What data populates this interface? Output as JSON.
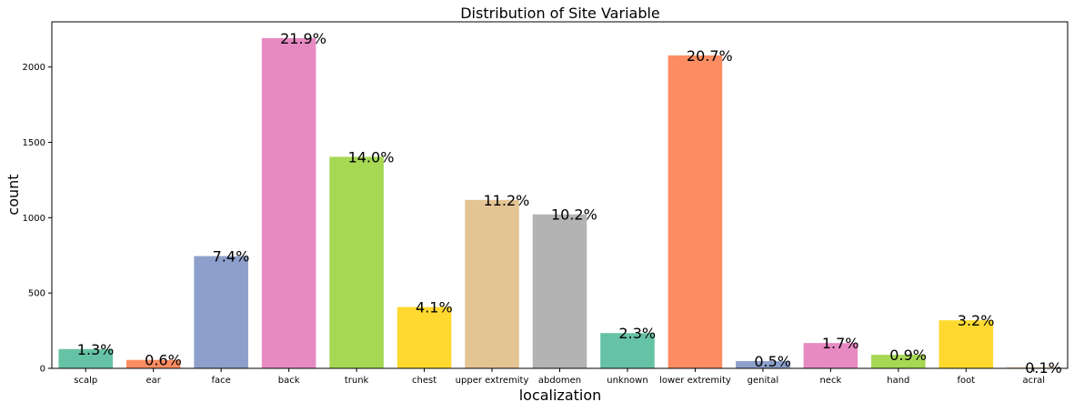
{
  "chart_data": {
    "type": "bar",
    "title": "Distribution of Site Variable",
    "xlabel": "localization",
    "ylabel": "count",
    "ylim": [
      0,
      2300
    ],
    "yticks": [
      0,
      500,
      1000,
      1500,
      2000
    ],
    "grid": false,
    "categories": [
      "scalp",
      "ear",
      "face",
      "back",
      "trunk",
      "chest",
      "upper extremity",
      "abdomen",
      "unknown",
      "lower extremity",
      "genital",
      "neck",
      "hand",
      "foot",
      "acral"
    ],
    "values": [
      128,
      56,
      745,
      2192,
      1404,
      407,
      1118,
      1022,
      234,
      2077,
      48,
      168,
      90,
      319,
      7
    ],
    "labels": [
      "1.3%",
      "0.6%",
      "7.4%",
      "21.9%",
      "14.0%",
      "4.1%",
      "11.2%",
      "10.2%",
      "2.3%",
      "20.7%",
      "0.5%",
      "1.7%",
      "0.9%",
      "3.2%",
      "0.1%"
    ],
    "colors": [
      "#66c2a5",
      "#fc8d62",
      "#8da0cb",
      "#e78ac3",
      "#a6d854",
      "#ffd92f",
      "#e5c494",
      "#b3b3b3",
      "#66c2a5",
      "#fc8d62",
      "#8da0cb",
      "#e78ac3",
      "#a6d854",
      "#ffd92f",
      "#e5c494"
    ]
  }
}
